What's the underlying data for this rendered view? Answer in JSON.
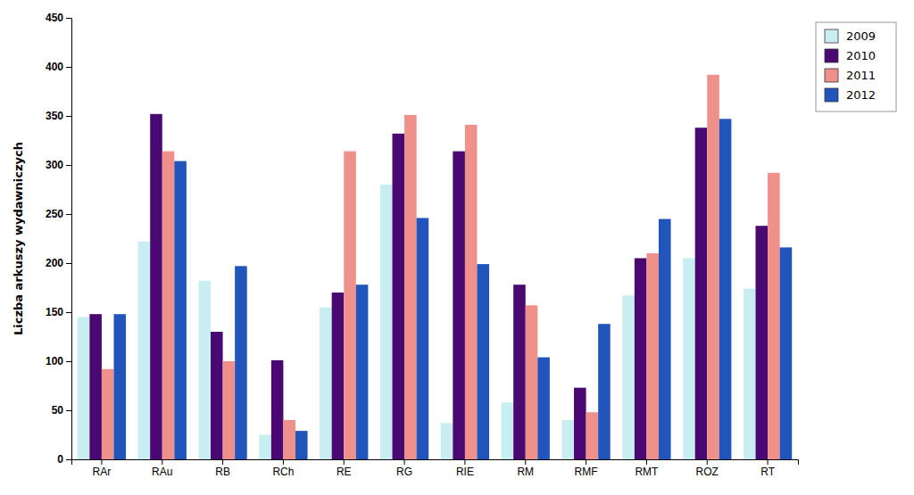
{
  "chart_data": {
    "type": "bar",
    "categories": [
      "RAr",
      "RAu",
      "RB",
      "RCh",
      "RE",
      "RG",
      "RIE",
      "RM",
      "RMF",
      "RMT",
      "ROZ",
      "RT"
    ],
    "series": [
      {
        "name": "2009",
        "color": "#c8eef2",
        "values": [
          145,
          222,
          182,
          25,
          155,
          280,
          37,
          58,
          40,
          167,
          205,
          174
        ]
      },
      {
        "name": "2010",
        "color": "#4a0872",
        "values": [
          148,
          352,
          130,
          101,
          170,
          332,
          314,
          178,
          73,
          205,
          338,
          238
        ]
      },
      {
        "name": "2011",
        "color": "#f0908a",
        "values": [
          92,
          314,
          100,
          40,
          314,
          351,
          341,
          157,
          48,
          210,
          392,
          292
        ]
      },
      {
        "name": "2012",
        "color": "#2255bb",
        "values": [
          148,
          304,
          197,
          29,
          178,
          246,
          199,
          104,
          138,
          245,
          347,
          216
        ]
      }
    ],
    "ylabel": "Liczba arkuszy wydawniczych",
    "ylim": [
      0,
      450
    ],
    "yticks": [
      0,
      50,
      100,
      150,
      200,
      250,
      300,
      350,
      400,
      450
    ],
    "grid": false,
    "legend": "right"
  }
}
